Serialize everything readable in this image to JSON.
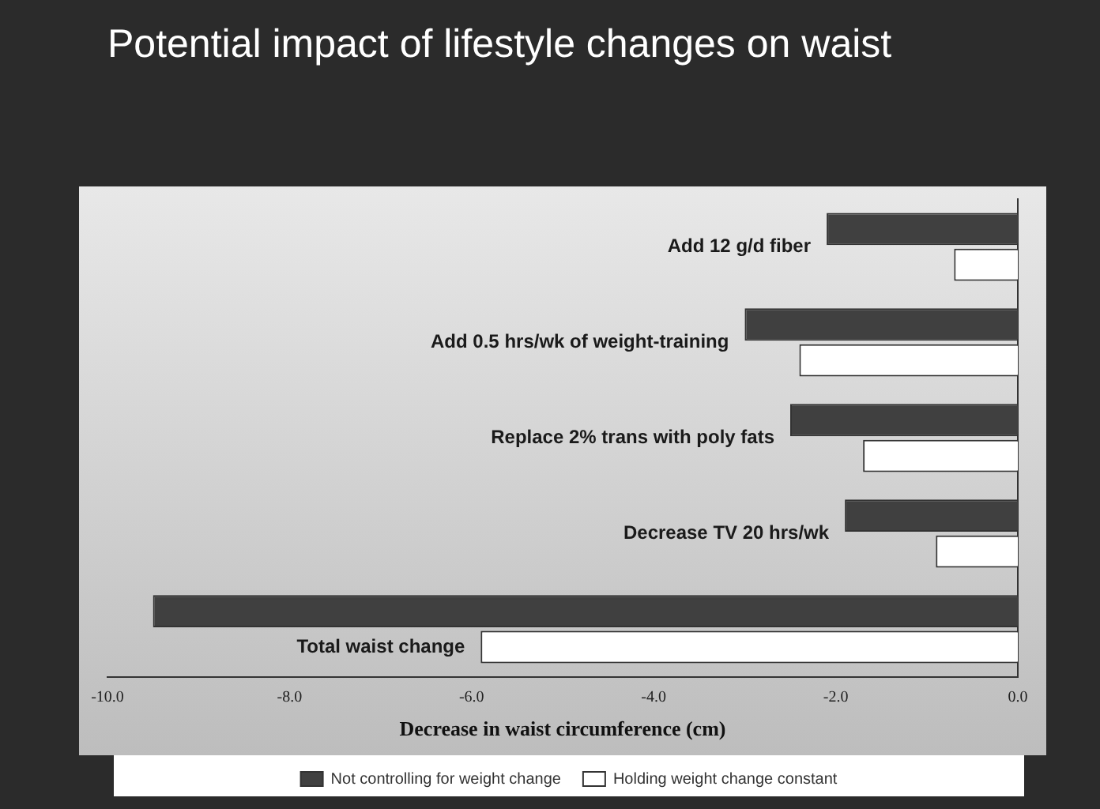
{
  "chart_data": {
    "type": "bar",
    "orientation": "horizontal",
    "title": "Potential impact of lifestyle changes on waist",
    "xlabel": "Decrease in waist circumference (cm)",
    "categories": [
      "Add 12 g/d fiber",
      "Add 0.5 hrs/wk of weight-training",
      "Replace 2% trans with poly fats",
      "Decrease TV 20 hrs/wk",
      "Total waist change"
    ],
    "series": [
      {
        "name": "Not controlling for weight change",
        "color": "#404040",
        "values": [
          -2.1,
          -3.0,
          -2.5,
          -1.9,
          -9.5
        ]
      },
      {
        "name": "Holding weight change constant",
        "color": "#ffffff",
        "values": [
          -0.7,
          -2.4,
          -1.7,
          -0.9,
          -5.9
        ]
      }
    ],
    "xlim": [
      -10,
      0
    ],
    "xticks": [
      {
        "value": -10,
        "label": "-10.0"
      },
      {
        "value": -8,
        "label": "-8.0"
      },
      {
        "value": -6,
        "label": "-6.0"
      },
      {
        "value": -4,
        "label": "-4.0"
      },
      {
        "value": -2,
        "label": "-2.0"
      },
      {
        "value": 0,
        "label": "0.0"
      }
    ],
    "grid": false,
    "legend": "bottom"
  }
}
